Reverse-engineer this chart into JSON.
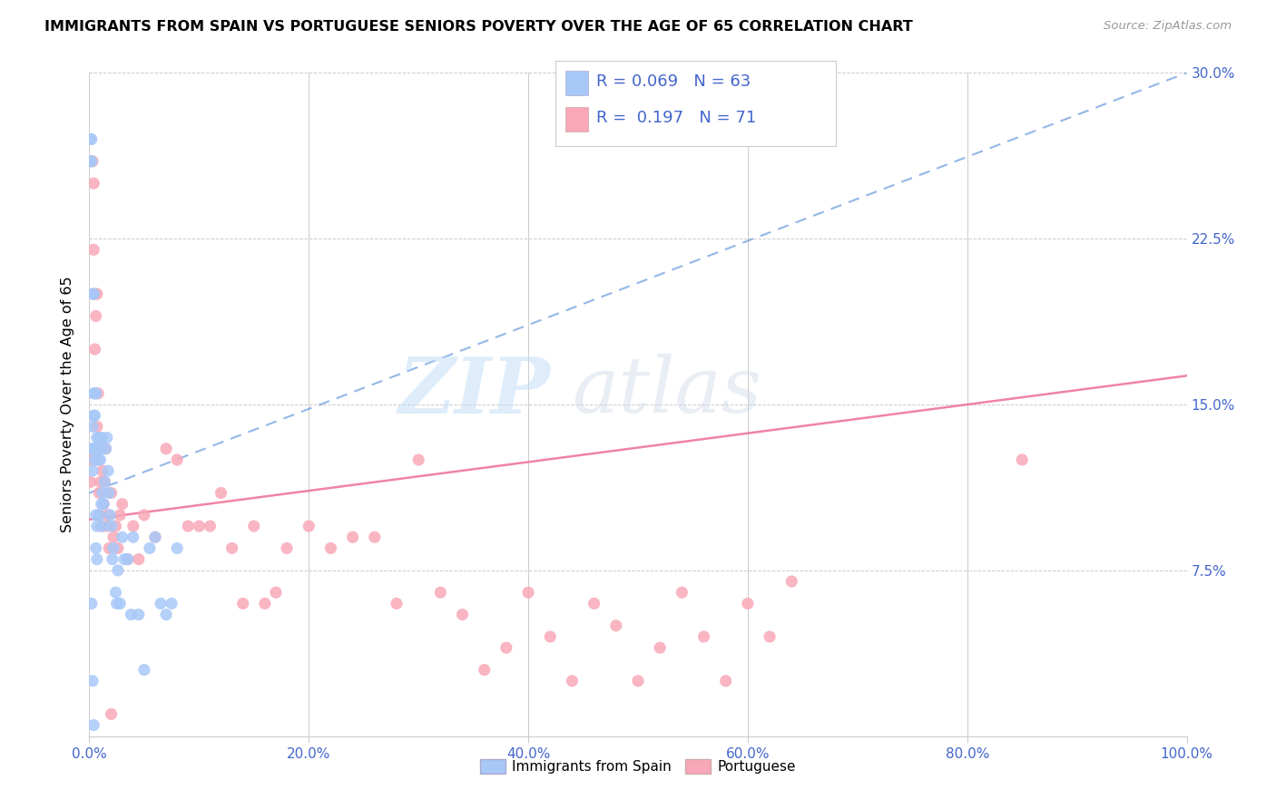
{
  "title": "IMMIGRANTS FROM SPAIN VS PORTUGUESE SENIORS POVERTY OVER THE AGE OF 65 CORRELATION CHART",
  "source": "Source: ZipAtlas.com",
  "ylabel": "Seniors Poverty Over the Age of 65",
  "xlim": [
    0,
    1.0
  ],
  "ylim": [
    0,
    0.3
  ],
  "xticks": [
    0.0,
    0.2,
    0.4,
    0.6,
    0.8,
    1.0
  ],
  "xticklabels": [
    "0.0%",
    "20.0%",
    "40.0%",
    "60.0%",
    "80.0%",
    "100.0%"
  ],
  "yticks_right": [
    0.075,
    0.15,
    0.225,
    0.3
  ],
  "yticklabels_right": [
    "7.5%",
    "15.0%",
    "22.5%",
    "30.0%"
  ],
  "legend_labels": [
    "Immigrants from Spain",
    "Portuguese"
  ],
  "blue_color": "#a8c8f8",
  "pink_color": "#f8a8b8",
  "blue_line_color": "#6699dd",
  "pink_line_color": "#ee7799",
  "R_blue": 0.069,
  "N_blue": 63,
  "R_pink": 0.197,
  "N_pink": 71,
  "watermark_zip": "ZIP",
  "watermark_atlas": "atlas",
  "blue_scatter_x": [
    0.001,
    0.001,
    0.002,
    0.002,
    0.002,
    0.003,
    0.003,
    0.003,
    0.004,
    0.004,
    0.004,
    0.004,
    0.005,
    0.005,
    0.005,
    0.005,
    0.006,
    0.006,
    0.006,
    0.006,
    0.007,
    0.007,
    0.007,
    0.008,
    0.008,
    0.009,
    0.009,
    0.01,
    0.01,
    0.011,
    0.011,
    0.012,
    0.012,
    0.013,
    0.014,
    0.015,
    0.016,
    0.017,
    0.018,
    0.019,
    0.02,
    0.021,
    0.022,
    0.024,
    0.025,
    0.026,
    0.028,
    0.03,
    0.032,
    0.035,
    0.038,
    0.04,
    0.045,
    0.05,
    0.055,
    0.06,
    0.065,
    0.07,
    0.075,
    0.08,
    0.002,
    0.003,
    0.004
  ],
  "blue_scatter_y": [
    0.27,
    0.26,
    0.27,
    0.26,
    0.13,
    0.14,
    0.12,
    0.2,
    0.2,
    0.13,
    0.155,
    0.145,
    0.155,
    0.145,
    0.13,
    0.125,
    0.13,
    0.155,
    0.1,
    0.085,
    0.08,
    0.095,
    0.135,
    0.125,
    0.13,
    0.135,
    0.1,
    0.13,
    0.125,
    0.135,
    0.105,
    0.095,
    0.11,
    0.105,
    0.115,
    0.13,
    0.135,
    0.12,
    0.11,
    0.1,
    0.095,
    0.08,
    0.085,
    0.065,
    0.06,
    0.075,
    0.06,
    0.09,
    0.08,
    0.08,
    0.055,
    0.09,
    0.055,
    0.03,
    0.085,
    0.09,
    0.06,
    0.055,
    0.06,
    0.085,
    0.06,
    0.025,
    0.005
  ],
  "pink_scatter_x": [
    0.001,
    0.002,
    0.003,
    0.004,
    0.004,
    0.005,
    0.005,
    0.006,
    0.007,
    0.007,
    0.008,
    0.008,
    0.009,
    0.009,
    0.01,
    0.011,
    0.012,
    0.013,
    0.014,
    0.015,
    0.016,
    0.017,
    0.018,
    0.02,
    0.022,
    0.024,
    0.026,
    0.028,
    0.03,
    0.035,
    0.04,
    0.045,
    0.05,
    0.06,
    0.07,
    0.08,
    0.09,
    0.1,
    0.11,
    0.12,
    0.13,
    0.14,
    0.15,
    0.16,
    0.17,
    0.18,
    0.2,
    0.22,
    0.24,
    0.26,
    0.28,
    0.3,
    0.32,
    0.34,
    0.36,
    0.38,
    0.4,
    0.42,
    0.44,
    0.46,
    0.48,
    0.5,
    0.52,
    0.54,
    0.56,
    0.58,
    0.6,
    0.62,
    0.64,
    0.85,
    0.02
  ],
  "pink_scatter_y": [
    0.115,
    0.125,
    0.26,
    0.22,
    0.25,
    0.2,
    0.175,
    0.19,
    0.14,
    0.2,
    0.155,
    0.125,
    0.11,
    0.1,
    0.115,
    0.095,
    0.12,
    0.105,
    0.115,
    0.13,
    0.095,
    0.1,
    0.085,
    0.11,
    0.09,
    0.095,
    0.085,
    0.1,
    0.105,
    0.08,
    0.095,
    0.08,
    0.1,
    0.09,
    0.13,
    0.125,
    0.095,
    0.095,
    0.095,
    0.11,
    0.085,
    0.06,
    0.095,
    0.06,
    0.065,
    0.085,
    0.095,
    0.085,
    0.09,
    0.09,
    0.06,
    0.125,
    0.065,
    0.055,
    0.03,
    0.04,
    0.065,
    0.045,
    0.025,
    0.06,
    0.05,
    0.025,
    0.04,
    0.065,
    0.045,
    0.025,
    0.06,
    0.045,
    0.07,
    0.125,
    0.01
  ],
  "blue_line_x": [
    0.0,
    0.2
  ],
  "blue_line_y": [
    0.11,
    0.15
  ],
  "pink_line_x": [
    0.0,
    1.0
  ],
  "pink_line_y": [
    0.098,
    0.163
  ]
}
